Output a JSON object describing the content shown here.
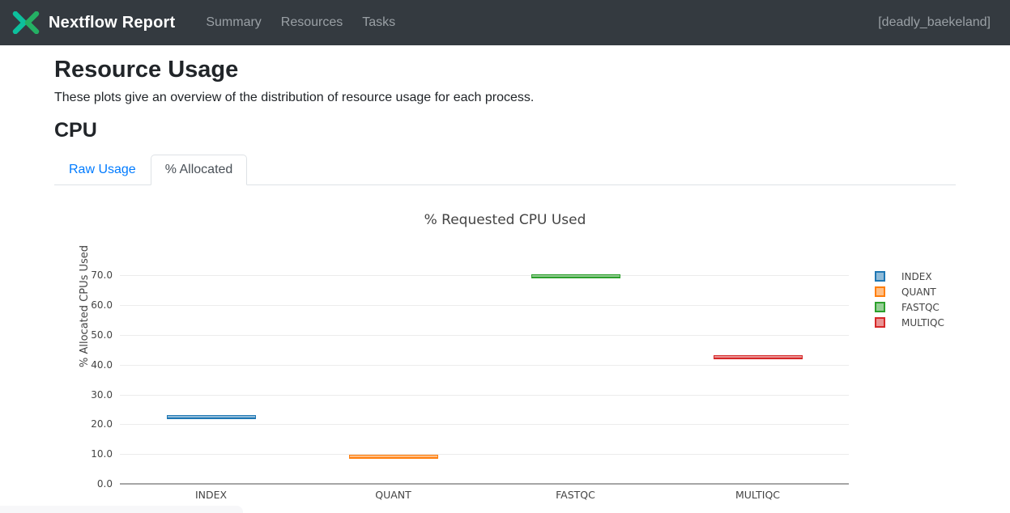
{
  "navbar": {
    "brand": "Nextflow Report",
    "items": [
      {
        "label": "Summary"
      },
      {
        "label": "Resources"
      },
      {
        "label": "Tasks"
      }
    ],
    "run_name": "[deadly_baekeland]",
    "colors": {
      "bg": "#343a40",
      "logo_teal": "#0dc09d",
      "logo_green": "#24b064",
      "link": "#9aa0a5"
    }
  },
  "page": {
    "title": "Resource Usage",
    "subtitle": "These plots give an overview of the distribution of resource usage for each process.",
    "section_title": "CPU"
  },
  "tabs": [
    {
      "label": "Raw Usage",
      "active": false
    },
    {
      "label": "% Allocated",
      "active": true
    }
  ],
  "chart_data": {
    "type": "box",
    "title": "% Requested CPU Used",
    "xlabel": "",
    "ylabel": "% Allocated CPUs Used",
    "categories": [
      "INDEX",
      "QUANT",
      "FASTQC",
      "MULTIQC"
    ],
    "series": [
      {
        "name": "INDEX",
        "color": "#1f77b4",
        "median": 22.5,
        "min": 22.5,
        "max": 22.5
      },
      {
        "name": "QUANT",
        "color": "#ff7f0e",
        "median": 9.0,
        "min": 9.0,
        "max": 9.0
      },
      {
        "name": "FASTQC",
        "color": "#2ca02c",
        "median": 69.8,
        "min": 69.8,
        "max": 69.8
      },
      {
        "name": "MULTIQC",
        "color": "#d62728",
        "median": 42.6,
        "min": 42.6,
        "max": 42.6
      }
    ],
    "yticks": [
      0,
      10,
      20,
      30,
      40,
      50,
      60,
      70
    ],
    "ytick_labels": [
      "0.0",
      "10.0",
      "20.0",
      "30.0",
      "40.0",
      "50.0",
      "60.0",
      "70.0"
    ],
    "ylim": [
      0,
      78
    ],
    "grid": true,
    "legend_position": "right"
  }
}
